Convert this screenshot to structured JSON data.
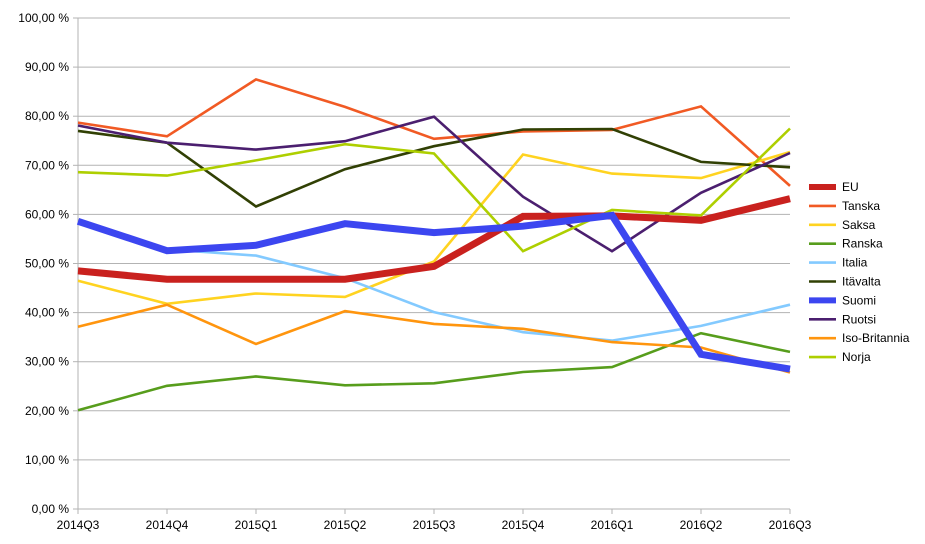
{
  "chart_data": {
    "type": "line",
    "title": "",
    "xlabel": "",
    "ylabel": "",
    "ylim": [
      0,
      100
    ],
    "ytick_step": 10,
    "grid": true,
    "legend_position": "right",
    "yticks": [
      "0,00 %",
      "10,00 %",
      "20,00 %",
      "30,00 %",
      "40,00 %",
      "50,00 %",
      "60,00 %",
      "70,00 %",
      "80,00 %",
      "90,00 %",
      "100,00 %"
    ],
    "categories": [
      "2014Q3",
      "2014Q4",
      "2015Q1",
      "2015Q2",
      "2015Q3",
      "2015Q4",
      "2016Q1",
      "2016Q2",
      "2016Q3"
    ],
    "series": [
      {
        "name": "EU",
        "color": "#c9211e",
        "emphasis": "thick",
        "values": [
          48.5,
          46.8,
          46.8,
          46.8,
          49.4,
          59.6,
          59.7,
          58.8,
          63.2
        ]
      },
      {
        "name": "Tanska",
        "color": "#f15a24",
        "emphasis": "normal",
        "values": [
          78.7,
          75.9,
          87.5,
          81.9,
          75.4,
          76.9,
          77.2,
          82.0,
          65.8
        ]
      },
      {
        "name": "Saksa",
        "color": "#ffd320",
        "emphasis": "normal",
        "values": [
          46.5,
          41.8,
          43.9,
          43.2,
          50.4,
          72.2,
          68.3,
          67.4,
          72.7
        ]
      },
      {
        "name": "Ranska",
        "color": "#579d1c",
        "emphasis": "normal",
        "values": [
          20.1,
          25.1,
          27.0,
          25.2,
          25.6,
          27.9,
          28.9,
          35.8,
          32.0
        ]
      },
      {
        "name": "Italia",
        "color": "#83caff",
        "emphasis": "normal",
        "values": [
          58.3,
          52.9,
          51.6,
          47.0,
          40.1,
          36.0,
          34.3,
          37.3,
          41.6
        ]
      },
      {
        "name": "Itävalta",
        "color": "#314004",
        "emphasis": "normal",
        "values": [
          77.0,
          74.6,
          61.6,
          69.2,
          73.9,
          77.3,
          77.4,
          70.7,
          69.6
        ]
      },
      {
        "name": "Suomi",
        "color": "#3c46f0",
        "emphasis": "thick",
        "values": [
          58.6,
          52.6,
          53.7,
          58.1,
          56.3,
          57.6,
          59.8,
          31.5,
          28.5
        ]
      },
      {
        "name": "Ruotsi",
        "color": "#4b1f6f",
        "emphasis": "normal",
        "values": [
          78.1,
          74.6,
          73.2,
          74.9,
          79.9,
          63.6,
          52.5,
          64.4,
          72.5
        ]
      },
      {
        "name": "Iso-Britannia",
        "color": "#ff950e",
        "emphasis": "normal",
        "values": [
          37.1,
          41.6,
          33.6,
          40.3,
          37.7,
          36.7,
          34.0,
          32.9,
          27.8
        ]
      },
      {
        "name": "Norja",
        "color": "#aecf00",
        "emphasis": "normal",
        "values": [
          68.6,
          67.9,
          71.0,
          74.3,
          72.4,
          52.5,
          60.9,
          59.8,
          77.5
        ]
      }
    ]
  }
}
